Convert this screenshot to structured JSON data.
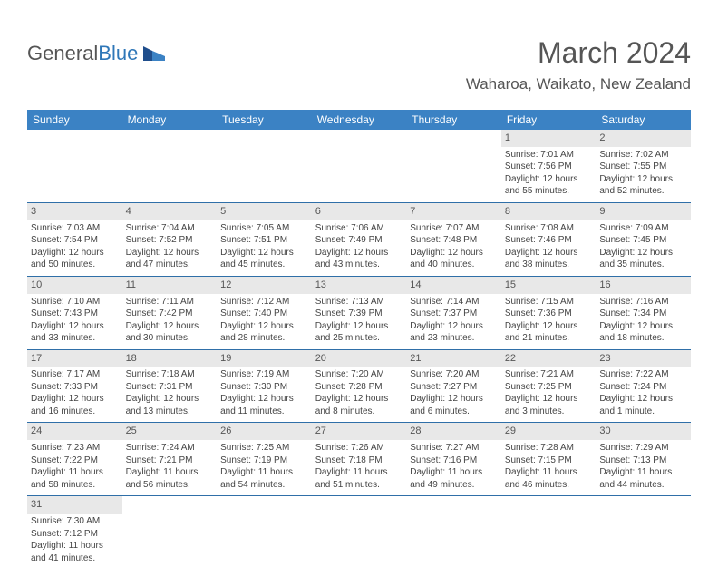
{
  "logo": {
    "text1": "General",
    "text2": "Blue"
  },
  "title": "March 2024",
  "location": "Waharoa, Waikato, New Zealand",
  "colors": {
    "header_bg": "#3b82c4",
    "header_text": "#ffffff",
    "daynum_bg": "#e8e8e8",
    "row_divider": "#2f6fa8",
    "logo_gray": "#555555",
    "logo_blue": "#2f77b8"
  },
  "days_of_week": [
    "Sunday",
    "Monday",
    "Tuesday",
    "Wednesday",
    "Thursday",
    "Friday",
    "Saturday"
  ],
  "leading_empty": 5,
  "cells": [
    {
      "n": "1",
      "sunrise": "7:01 AM",
      "sunset": "7:56 PM",
      "daylight": "12 hours and 55 minutes."
    },
    {
      "n": "2",
      "sunrise": "7:02 AM",
      "sunset": "7:55 PM",
      "daylight": "12 hours and 52 minutes."
    },
    {
      "n": "3",
      "sunrise": "7:03 AM",
      "sunset": "7:54 PM",
      "daylight": "12 hours and 50 minutes."
    },
    {
      "n": "4",
      "sunrise": "7:04 AM",
      "sunset": "7:52 PM",
      "daylight": "12 hours and 47 minutes."
    },
    {
      "n": "5",
      "sunrise": "7:05 AM",
      "sunset": "7:51 PM",
      "daylight": "12 hours and 45 minutes."
    },
    {
      "n": "6",
      "sunrise": "7:06 AM",
      "sunset": "7:49 PM",
      "daylight": "12 hours and 43 minutes."
    },
    {
      "n": "7",
      "sunrise": "7:07 AM",
      "sunset": "7:48 PM",
      "daylight": "12 hours and 40 minutes."
    },
    {
      "n": "8",
      "sunrise": "7:08 AM",
      "sunset": "7:46 PM",
      "daylight": "12 hours and 38 minutes."
    },
    {
      "n": "9",
      "sunrise": "7:09 AM",
      "sunset": "7:45 PM",
      "daylight": "12 hours and 35 minutes."
    },
    {
      "n": "10",
      "sunrise": "7:10 AM",
      "sunset": "7:43 PM",
      "daylight": "12 hours and 33 minutes."
    },
    {
      "n": "11",
      "sunrise": "7:11 AM",
      "sunset": "7:42 PM",
      "daylight": "12 hours and 30 minutes."
    },
    {
      "n": "12",
      "sunrise": "7:12 AM",
      "sunset": "7:40 PM",
      "daylight": "12 hours and 28 minutes."
    },
    {
      "n": "13",
      "sunrise": "7:13 AM",
      "sunset": "7:39 PM",
      "daylight": "12 hours and 25 minutes."
    },
    {
      "n": "14",
      "sunrise": "7:14 AM",
      "sunset": "7:37 PM",
      "daylight": "12 hours and 23 minutes."
    },
    {
      "n": "15",
      "sunrise": "7:15 AM",
      "sunset": "7:36 PM",
      "daylight": "12 hours and 21 minutes."
    },
    {
      "n": "16",
      "sunrise": "7:16 AM",
      "sunset": "7:34 PM",
      "daylight": "12 hours and 18 minutes."
    },
    {
      "n": "17",
      "sunrise": "7:17 AM",
      "sunset": "7:33 PM",
      "daylight": "12 hours and 16 minutes."
    },
    {
      "n": "18",
      "sunrise": "7:18 AM",
      "sunset": "7:31 PM",
      "daylight": "12 hours and 13 minutes."
    },
    {
      "n": "19",
      "sunrise": "7:19 AM",
      "sunset": "7:30 PM",
      "daylight": "12 hours and 11 minutes."
    },
    {
      "n": "20",
      "sunrise": "7:20 AM",
      "sunset": "7:28 PM",
      "daylight": "12 hours and 8 minutes."
    },
    {
      "n": "21",
      "sunrise": "7:20 AM",
      "sunset": "7:27 PM",
      "daylight": "12 hours and 6 minutes."
    },
    {
      "n": "22",
      "sunrise": "7:21 AM",
      "sunset": "7:25 PM",
      "daylight": "12 hours and 3 minutes."
    },
    {
      "n": "23",
      "sunrise": "7:22 AM",
      "sunset": "7:24 PM",
      "daylight": "12 hours and 1 minute."
    },
    {
      "n": "24",
      "sunrise": "7:23 AM",
      "sunset": "7:22 PM",
      "daylight": "11 hours and 58 minutes."
    },
    {
      "n": "25",
      "sunrise": "7:24 AM",
      "sunset": "7:21 PM",
      "daylight": "11 hours and 56 minutes."
    },
    {
      "n": "26",
      "sunrise": "7:25 AM",
      "sunset": "7:19 PM",
      "daylight": "11 hours and 54 minutes."
    },
    {
      "n": "27",
      "sunrise": "7:26 AM",
      "sunset": "7:18 PM",
      "daylight": "11 hours and 51 minutes."
    },
    {
      "n": "28",
      "sunrise": "7:27 AM",
      "sunset": "7:16 PM",
      "daylight": "11 hours and 49 minutes."
    },
    {
      "n": "29",
      "sunrise": "7:28 AM",
      "sunset": "7:15 PM",
      "daylight": "11 hours and 46 minutes."
    },
    {
      "n": "30",
      "sunrise": "7:29 AM",
      "sunset": "7:13 PM",
      "daylight": "11 hours and 44 minutes."
    },
    {
      "n": "31",
      "sunrise": "7:30 AM",
      "sunset": "7:12 PM",
      "daylight": "11 hours and 41 minutes."
    }
  ],
  "labels": {
    "sunrise": "Sunrise:",
    "sunset": "Sunset:",
    "daylight": "Daylight:"
  }
}
